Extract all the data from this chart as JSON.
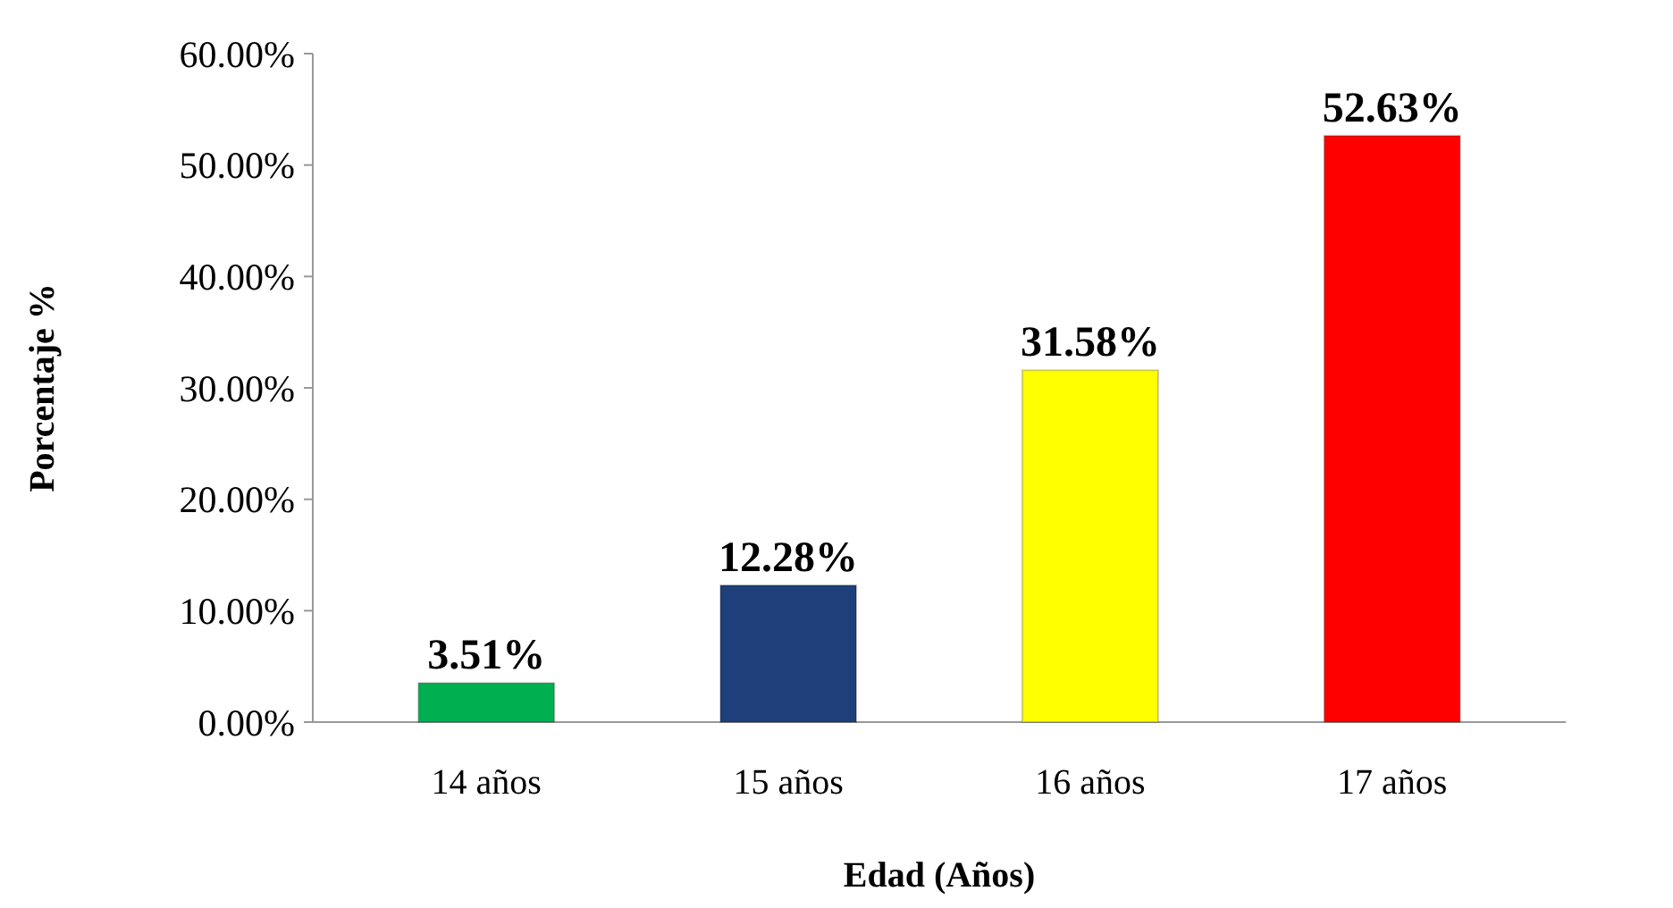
{
  "chart_data": {
    "type": "bar",
    "xlabel": "Edad (Años)",
    "ylabel": "Porcentaje %",
    "categories": [
      "14 años",
      "15 años",
      "16 años",
      "17 años"
    ],
    "values": [
      3.51,
      12.28,
      31.58,
      52.63
    ],
    "colors": [
      "#00b050",
      "#1f3f7a",
      "#ffff00",
      "#ff0000"
    ],
    "value_labels": [
      "3.51%",
      "12.28%",
      "31.58%",
      "52.63%"
    ],
    "ylim": [
      0,
      60
    ],
    "yticks": [
      {
        "value": 0,
        "label": "0.00%"
      },
      {
        "value": 10,
        "label": "10.00%"
      },
      {
        "value": 20,
        "label": "20.00%"
      },
      {
        "value": 30,
        "label": "30.00%"
      },
      {
        "value": 40,
        "label": "40.00%"
      },
      {
        "value": 50,
        "label": "50.00%"
      },
      {
        "value": 60,
        "label": "60.00%"
      }
    ],
    "grid": false
  }
}
